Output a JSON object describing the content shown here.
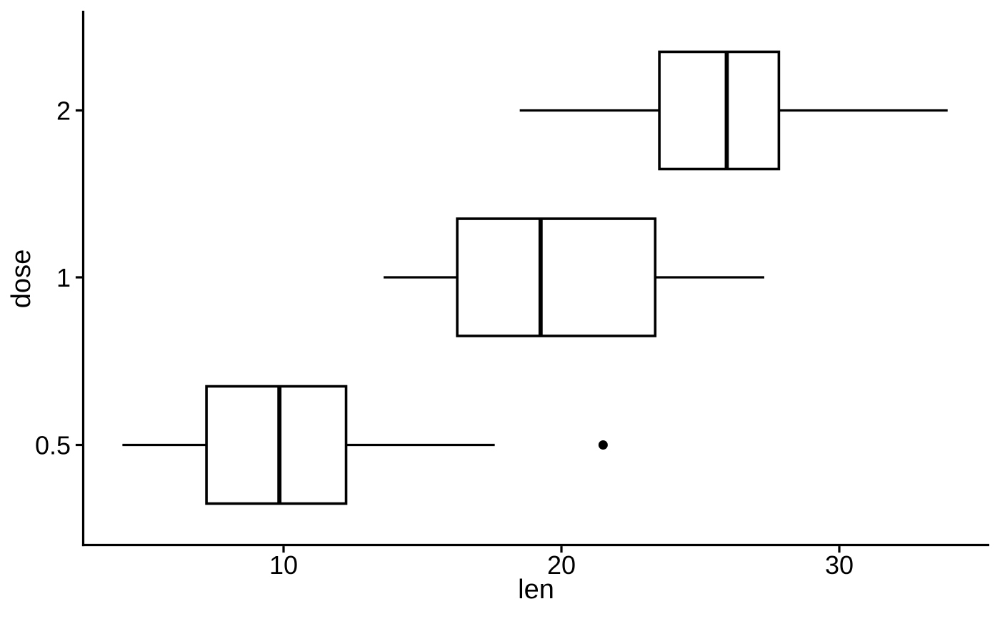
{
  "chart_data": {
    "type": "boxplot",
    "orientation": "horizontal",
    "title": "",
    "xlabel": "len",
    "ylabel": "dose",
    "x_ticks": [
      "10",
      "20",
      "30"
    ],
    "x_tick_values": [
      10,
      20,
      30
    ],
    "xlim": [
      2.8,
      35.4
    ],
    "categories": [
      "0.5",
      "1",
      "2"
    ],
    "grid": false,
    "legend": false,
    "colors": {
      "stroke": "#000000",
      "box_fill": "#ffffff",
      "background": "#ffffff"
    },
    "series": [
      {
        "category": "0.5",
        "lower_whisker": 4.2,
        "q1": 7.225,
        "median": 9.85,
        "q3": 12.25,
        "upper_whisker": 17.6,
        "outliers": [
          21.5
        ]
      },
      {
        "category": "1",
        "lower_whisker": 13.6,
        "q1": 16.25,
        "median": 19.25,
        "q3": 23.375,
        "upper_whisker": 27.3,
        "outliers": []
      },
      {
        "category": "2",
        "lower_whisker": 18.5,
        "q1": 23.525,
        "median": 25.95,
        "q3": 27.825,
        "upper_whisker": 33.9,
        "outliers": []
      }
    ]
  }
}
